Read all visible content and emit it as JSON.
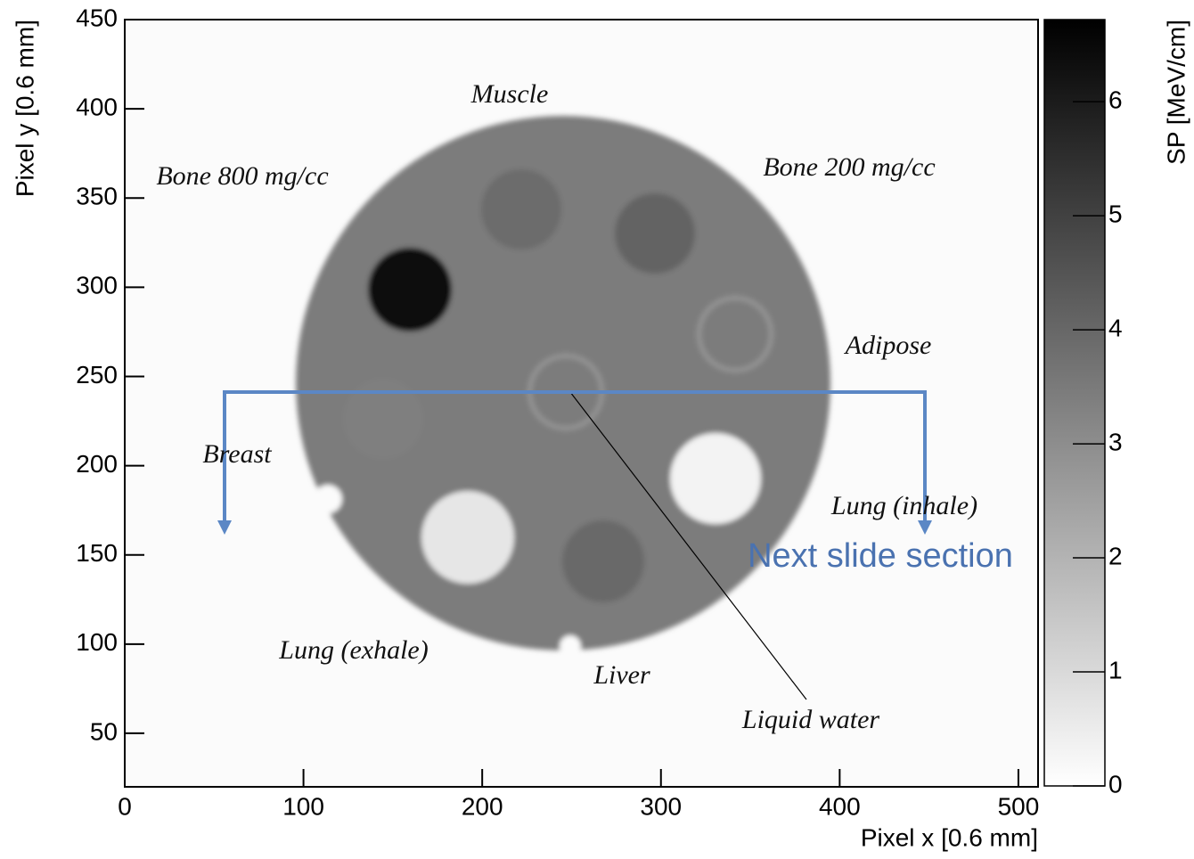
{
  "chart_data": {
    "type": "heatmap",
    "xlabel": "Pixel x [0.6 mm]",
    "ylabel": "Pixel y [0.6 mm]",
    "colorbar_label": "SP [MeV/cm]",
    "xlim": [
      0,
      511
    ],
    "ylim": [
      20,
      450
    ],
    "xticks": [
      0,
      100,
      200,
      300,
      400,
      500
    ],
    "yticks": [
      50,
      100,
      150,
      200,
      250,
      300,
      350,
      400,
      450
    ],
    "zlim": [
      0,
      6.72
    ],
    "zticks": [
      0,
      1,
      2,
      3,
      4,
      5,
      6
    ],
    "colormap": [
      "#ffffff",
      "#000000"
    ],
    "annotations": [
      "Muscle",
      "Bone 800 mg/cc",
      "Bone 200 mg/cc",
      "Adipose",
      "Breast",
      "Lung (inhale)",
      "Lung (exhale)",
      "Liver",
      "Liquid water"
    ],
    "overlay_label": "Next slide section"
  }
}
